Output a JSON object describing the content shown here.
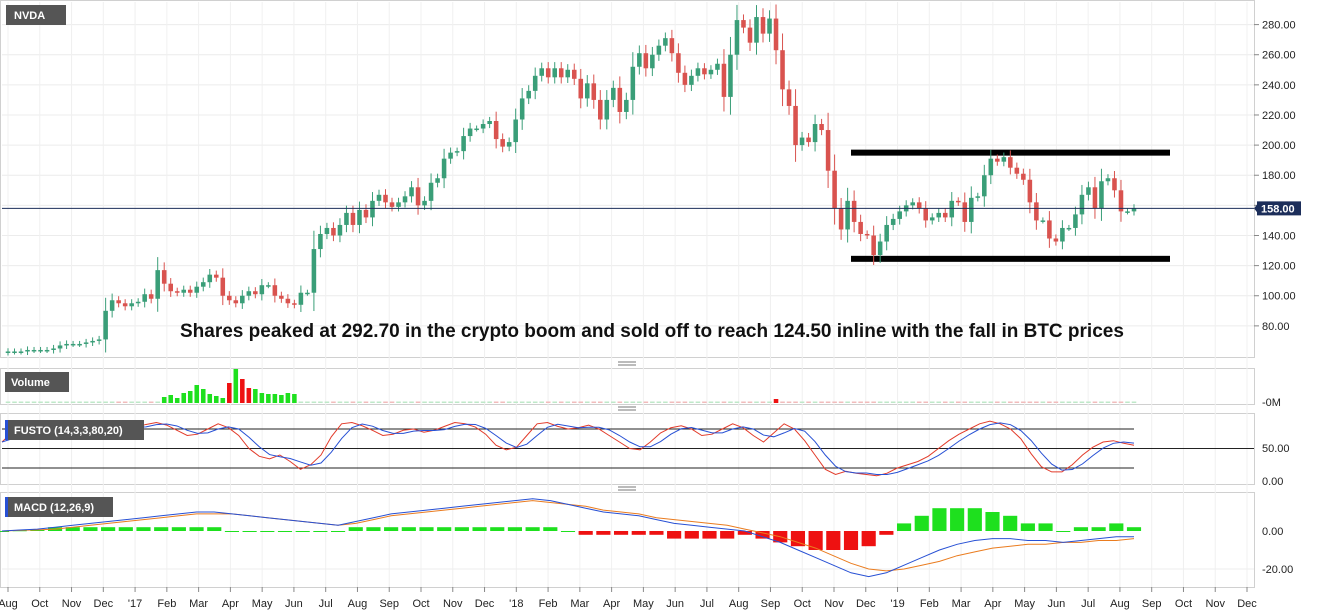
{
  "chart_data": {
    "type": "candlestick",
    "symbol": "NVDA",
    "current_price": "158.00",
    "annotation": "Shares peaked at 292.70 in the crypto boom and sold off to reach 124.50 inline with the fall in BTC prices",
    "peak": 292.7,
    "trough": 124.5,
    "resistance_level": 195,
    "support_level": 124.5,
    "ylim": [
      60,
      295
    ],
    "y_ticks": [
      "280.00",
      "260.00",
      "240.00",
      "220.00",
      "200.00",
      "180.00",
      "160.00",
      "140.00",
      "120.00",
      "100.00",
      "80.00"
    ],
    "x_ticks": [
      "Aug",
      "Oct",
      "Nov",
      "Dec",
      "'17",
      "Feb",
      "Mar",
      "Apr",
      "May",
      "Jun",
      "Jul",
      "Aug",
      "Sep",
      "Oct",
      "Nov",
      "Dec",
      "'18",
      "Feb",
      "Mar",
      "Apr",
      "May",
      "Jun",
      "Jul",
      "Aug",
      "Sep",
      "Oct",
      "Nov",
      "Dec",
      "'19",
      "Feb",
      "Mar",
      "Apr",
      "May",
      "Jun",
      "Jul",
      "Aug",
      "Sep",
      "Oct",
      "Nov",
      "Dec"
    ],
    "weekly_closes": [
      63,
      63,
      63,
      64,
      64,
      64,
      64,
      65,
      67,
      68,
      68,
      68,
      69,
      70,
      71,
      90,
      97,
      95,
      93,
      95,
      96,
      101,
      98,
      117,
      108,
      103,
      102,
      104,
      102,
      106,
      109,
      114,
      112,
      100,
      97,
      95,
      100,
      103,
      101,
      107,
      107,
      100,
      98,
      95,
      94,
      102,
      102,
      131,
      141,
      145,
      140,
      147,
      155,
      147,
      157,
      152,
      163,
      167,
      162,
      159,
      162,
      166,
      172,
      160,
      163,
      175,
      178,
      191,
      195,
      196,
      206,
      211,
      211,
      214,
      216,
      204,
      199,
      202,
      217,
      231,
      236,
      246,
      251,
      245,
      251,
      245,
      250,
      244,
      231,
      241,
      230,
      217,
      230,
      238,
      222,
      230,
      252,
      261,
      251,
      260,
      266,
      271,
      261,
      248,
      240,
      246,
      251,
      247,
      250,
      254,
      232,
      260,
      283,
      278,
      268,
      285,
      274,
      284,
      263,
      237,
      226,
      200,
      205,
      202,
      214,
      210,
      183,
      158,
      144,
      163,
      149,
      141,
      140,
      127,
      136,
      147,
      151,
      156,
      160,
      162,
      158,
      150,
      152,
      155,
      152,
      163,
      162,
      149,
      165,
      166,
      180,
      191,
      189,
      192,
      185,
      181,
      177,
      162,
      150,
      150,
      138,
      136,
      145,
      145,
      154,
      167,
      172,
      158,
      176,
      178,
      170,
      156,
      156,
      158
    ],
    "volume_ticks": [
      "-0M"
    ],
    "fusto": {
      "label": "FUSTO (14,3,3,80,20)",
      "upper": 80,
      "lower": 20,
      "ticks": [
        "50.00",
        "0.00"
      ],
      "k_values": [
        60,
        75,
        72,
        68,
        73,
        82,
        80,
        78,
        84,
        90,
        88,
        84,
        80,
        83,
        87,
        90,
        86,
        78,
        70,
        72,
        80,
        88,
        82,
        70,
        50,
        38,
        34,
        40,
        30,
        18,
        25,
        40,
        68,
        88,
        90,
        85,
        78,
        70,
        72,
        78,
        80,
        75,
        78,
        84,
        90,
        88,
        83,
        72,
        55,
        48,
        52,
        70,
        88,
        90,
        84,
        80,
        82,
        86,
        80,
        70,
        60,
        50,
        48,
        60,
        74,
        82,
        85,
        80,
        70,
        72,
        80,
        88,
        82,
        70,
        60,
        74,
        88,
        80,
        62,
        40,
        18,
        10,
        15,
        12,
        10,
        8,
        12,
        20,
        25,
        30,
        38,
        50,
        62,
        72,
        80,
        88,
        92,
        88,
        80,
        65,
        42,
        22,
        14,
        14,
        25,
        40,
        52,
        60,
        62,
        58,
        55
      ]
    },
    "macd": {
      "label": "MACD (12,26,9)",
      "ticks": [
        "0.00",
        "-20.00"
      ],
      "macd_line": [
        0,
        0.5,
        1,
        2,
        3,
        4,
        5,
        6,
        7,
        8,
        9,
        10,
        10,
        9,
        8,
        7,
        6,
        5,
        4,
        3,
        5,
        7,
        9,
        10,
        11,
        12,
        13,
        14,
        15,
        16,
        17,
        16,
        14,
        12,
        10,
        9,
        8,
        6,
        4,
        3,
        2,
        1,
        0,
        -3,
        -6,
        -10,
        -14,
        -18,
        -22,
        -24,
        -22,
        -18,
        -14,
        -10,
        -7,
        -5,
        -4,
        -4,
        -5,
        -5,
        -6,
        -5,
        -4,
        -3,
        -3
      ],
      "signal_line": [
        0,
        0.3,
        0.6,
        1,
        2,
        3,
        4,
        5,
        6,
        7,
        8,
        9,
        9,
        9,
        8,
        7,
        6,
        5,
        4,
        3,
        4,
        6,
        8,
        9,
        10,
        11,
        12,
        13,
        14,
        15,
        16,
        15,
        14,
        13,
        11,
        10,
        9,
        7,
        6,
        5,
        4,
        3,
        1,
        -1,
        -3,
        -6,
        -9,
        -13,
        -17,
        -20,
        -21,
        -20,
        -18,
        -16,
        -13,
        -11,
        -9,
        -8,
        -7,
        -7,
        -6,
        -6,
        -5,
        -5,
        -4
      ]
    },
    "volume_label": "Volume",
    "colors": {
      "up": "#3a9e78",
      "down": "#d9534f",
      "stoch_k": "#2750d4",
      "stoch_d": "#e23b2a",
      "macd": "#2750d4",
      "signal": "#ea7c1f",
      "hist_up": "#1ee01e",
      "hist_down": "#ee1111"
    }
  }
}
